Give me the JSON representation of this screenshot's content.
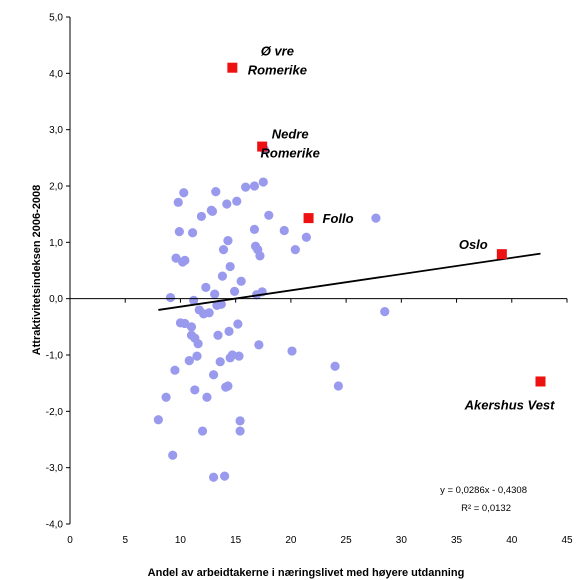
{
  "chart_data": {
    "type": "scatter",
    "xlabel": "Andel av arbeidtakerne i næringslivet med høyere utdanning",
    "ylabel": "Attraktivitetsindeksen 2006-2008",
    "xlim": [
      0,
      45
    ],
    "ylim": [
      -4,
      5
    ],
    "x_ticks": [
      "0",
      "5",
      "10",
      "15",
      "20",
      "25",
      "30",
      "35",
      "40",
      "45"
    ],
    "y_ticks": [
      "-4,0",
      "-3,0",
      "-2,0",
      "-1,0",
      "0,0",
      "1,0",
      "2,0",
      "3,0",
      "4,0",
      "5,0"
    ],
    "grid": false,
    "colors": {
      "points": "#9999ee",
      "highlight": "#ee1111",
      "trendline": "#000000"
    },
    "points": [
      [
        8.0,
        -2.15
      ],
      [
        8.7,
        -1.75
      ],
      [
        9.1,
        0.02
      ],
      [
        9.3,
        -2.78
      ],
      [
        9.5,
        -1.27
      ],
      [
        9.6,
        0.72
      ],
      [
        9.8,
        1.71
      ],
      [
        9.9,
        1.19
      ],
      [
        10.0,
        -0.43
      ],
      [
        10.2,
        0.65
      ],
      [
        10.3,
        1.88
      ],
      [
        10.4,
        -0.44
      ],
      [
        10.4,
        0.68
      ],
      [
        10.8,
        -1.1
      ],
      [
        11.0,
        -0.5
      ],
      [
        11.0,
        -0.65
      ],
      [
        11.1,
        1.17
      ],
      [
        11.2,
        -0.03
      ],
      [
        11.3,
        -0.7
      ],
      [
        11.3,
        -1.62
      ],
      [
        11.5,
        -1.02
      ],
      [
        11.6,
        -0.8
      ],
      [
        11.7,
        -0.2
      ],
      [
        11.9,
        1.46
      ],
      [
        12.0,
        -2.35
      ],
      [
        12.1,
        -0.27
      ],
      [
        12.3,
        0.2
      ],
      [
        12.4,
        -1.75
      ],
      [
        12.6,
        -0.25
      ],
      [
        12.8,
        1.57
      ],
      [
        12.9,
        1.55
      ],
      [
        13.0,
        -1.35
      ],
      [
        13.0,
        -3.17
      ],
      [
        13.1,
        0.08
      ],
      [
        13.2,
        1.9
      ],
      [
        13.3,
        -0.12
      ],
      [
        13.4,
        -0.65
      ],
      [
        13.5,
        -0.1
      ],
      [
        13.6,
        -1.12
      ],
      [
        13.7,
        -0.1
      ],
      [
        13.8,
        0.4
      ],
      [
        13.9,
        0.87
      ],
      [
        14.0,
        -3.15
      ],
      [
        14.1,
        -1.57
      ],
      [
        14.2,
        1.68
      ],
      [
        14.3,
        1.03
      ],
      [
        14.3,
        -1.55
      ],
      [
        14.4,
        -0.58
      ],
      [
        14.5,
        -1.05
      ],
      [
        14.5,
        0.57
      ],
      [
        14.7,
        -1.0
      ],
      [
        14.9,
        0.13
      ],
      [
        15.1,
        1.73
      ],
      [
        15.2,
        -0.45
      ],
      [
        15.3,
        -1.02
      ],
      [
        15.4,
        -2.17
      ],
      [
        15.4,
        -2.35
      ],
      [
        15.5,
        0.31
      ],
      [
        15.9,
        1.98
      ],
      [
        16.7,
        2.0
      ],
      [
        16.7,
        1.23
      ],
      [
        16.8,
        0.93
      ],
      [
        16.9,
        0.07
      ],
      [
        17.0,
        0.87
      ],
      [
        17.1,
        -0.82
      ],
      [
        17.2,
        0.76
      ],
      [
        17.4,
        0.12
      ],
      [
        17.5,
        2.07
      ],
      [
        17.6,
        2.65
      ],
      [
        18.0,
        1.48
      ],
      [
        19.4,
        1.21
      ],
      [
        20.1,
        -0.93
      ],
      [
        20.4,
        0.87
      ],
      [
        21.4,
        1.09
      ],
      [
        24.0,
        -1.2
      ],
      [
        24.3,
        -1.55
      ],
      [
        27.7,
        1.43
      ],
      [
        28.5,
        -0.23
      ]
    ],
    "highlights": [
      {
        "name": "Øvre Romerike",
        "lines": [
          "Ø vre",
          "Romerike"
        ],
        "x": 14.7,
        "y": 4.1
      },
      {
        "name": "Nedre Romerike",
        "lines": [
          "Nedre",
          "Romerike"
        ],
        "x": 17.4,
        "y": 2.7
      },
      {
        "name": "Follo",
        "lines": [
          "Follo"
        ],
        "x": 21.6,
        "y": 1.43
      },
      {
        "name": "Oslo",
        "lines": [
          "Oslo"
        ],
        "x": 39.1,
        "y": 0.79
      },
      {
        "name": "Akershus Vest",
        "lines": [
          "Akershus Vest"
        ],
        "x": 42.6,
        "y": -1.47
      }
    ],
    "trendline": {
      "x": [
        8.0,
        42.6
      ],
      "y": [
        -0.2,
        0.8
      ]
    },
    "equation": [
      "y = 0,0286x - 0,4308",
      "R² = 0,0132"
    ]
  }
}
